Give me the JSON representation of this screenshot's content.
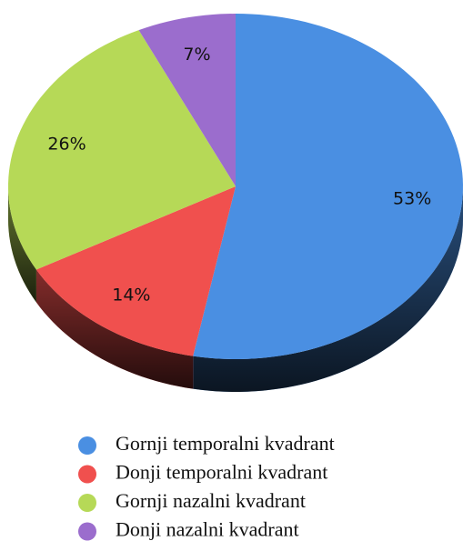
{
  "chart_data": {
    "type": "pie",
    "categories": [
      "Gornji temporalni kvadrant",
      "Donji temporalni kvadrant",
      "Gornji nazalni kvadrant",
      "Donji nazalni kvadrant"
    ],
    "values": [
      53,
      14,
      26,
      7
    ],
    "value_labels": [
      "53%",
      "14%",
      "26%",
      "7%"
    ],
    "colors": [
      "#4a8fe2",
      "#f0504e",
      "#b6d957",
      "#9b6dcd"
    ]
  }
}
